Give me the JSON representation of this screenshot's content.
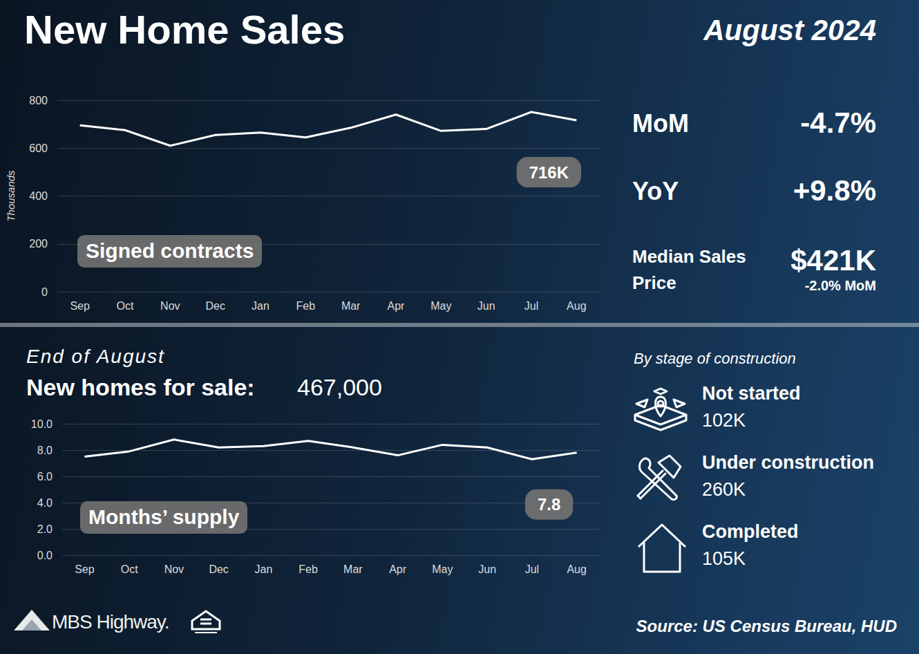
{
  "header": {
    "title": "New Home Sales",
    "period": "August 2024"
  },
  "chart_data": [
    {
      "type": "line",
      "title": "Signed contracts",
      "y_label": "Thousands",
      "categories": [
        "Sep",
        "Oct",
        "Nov",
        "Dec",
        "Jan",
        "Feb",
        "Mar",
        "Apr",
        "May",
        "Jun",
        "Jul",
        "Aug"
      ],
      "values": [
        695,
        675,
        610,
        655,
        665,
        645,
        685,
        740,
        672,
        680,
        751,
        716
      ],
      "color": "#ffffff",
      "ylim": [
        0,
        800
      ],
      "yticks": [
        0,
        200,
        400,
        600,
        800
      ],
      "grid": true,
      "annotations": [
        "716K"
      ]
    },
    {
      "type": "line",
      "title": "Months’ supply",
      "categories": [
        "Sep",
        "Oct",
        "Nov",
        "Dec",
        "Jan",
        "Feb",
        "Mar",
        "Apr",
        "May",
        "Jun",
        "Jul",
        "Aug"
      ],
      "values": [
        7.5,
        7.9,
        8.8,
        8.2,
        8.3,
        8.7,
        8.2,
        7.6,
        8.4,
        8.2,
        7.3,
        7.8
      ],
      "color": "#ffffff",
      "ylim": [
        0,
        10
      ],
      "yticks": [
        {
          "value": 0,
          "label": "0.0"
        },
        {
          "value": 2,
          "label": "2.0"
        },
        {
          "value": 4,
          "label": "4.0"
        },
        {
          "value": 6,
          "label": "6.0"
        },
        {
          "value": 8,
          "label": "8.0"
        },
        {
          "value": 10,
          "label": "10.0"
        }
      ],
      "grid": true,
      "annotations": [
        "7.8"
      ]
    }
  ],
  "stats": [
    {
      "label": "MoM",
      "value": "-4.7%"
    },
    {
      "label": "YoY",
      "value": "+9.8%"
    },
    {
      "label": "Median Sales Price",
      "value": "$421K",
      "note": "-2.0% MoM"
    }
  ],
  "inventory": {
    "heading": "End of August",
    "label": "New homes for sale:",
    "value": "467,000",
    "stages_title": "By stage of construction",
    "stages": [
      {
        "label": "Not started",
        "value": "102K"
      },
      {
        "label": "Under construction",
        "value": "260K"
      },
      {
        "label": "Completed",
        "value": "105K"
      }
    ]
  },
  "footer": {
    "brand": "MBS Highway.",
    "source": "Source: US Census Bureau, HUD"
  }
}
